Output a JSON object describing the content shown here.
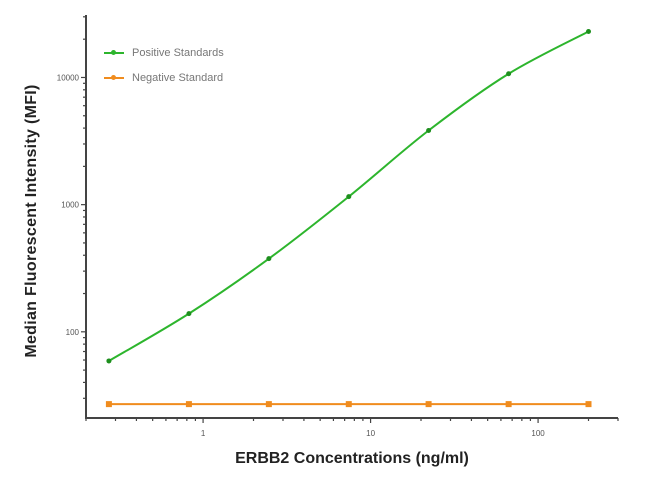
{
  "chart_data": {
    "type": "line",
    "title": "",
    "xlabel": "ERBB2 Concentrations (ng/ml)",
    "ylabel": "Median  Fluorescent Intensity  (MFI)",
    "xscale": "log",
    "yscale": "log",
    "xlim": [
      0.2,
      300
    ],
    "ylim": [
      21,
      31000
    ],
    "x_ticks": [
      "1",
      "10",
      "100"
    ],
    "y_ticks": [
      "100",
      "1000",
      "10000"
    ],
    "grid": false,
    "legend_position": "upper left",
    "x": [
      0.274,
      0.823,
      2.47,
      7.41,
      22.2,
      66.7,
      200
    ],
    "series": [
      {
        "name": "Positive Standards",
        "color": "#2db52d",
        "values": [
          59,
          139,
          376,
          1157,
          3829,
          10700,
          23000
        ]
      },
      {
        "name": "Negative Standard",
        "color": "#f08c1e",
        "values": [
          27,
          27,
          27,
          27,
          27,
          27,
          27
        ]
      }
    ]
  }
}
